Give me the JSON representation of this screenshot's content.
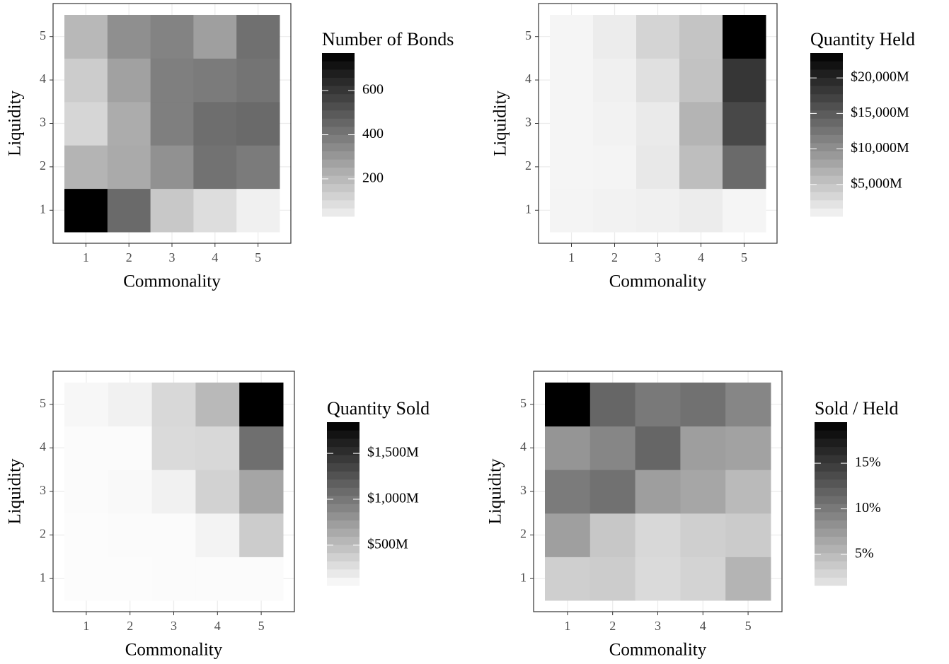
{
  "chart_data": [
    {
      "type": "heatmap",
      "xlabel": "Commonality",
      "ylabel": "Liquidity",
      "legend_title": "Number of Bonds",
      "x": [
        1,
        2,
        3,
        4,
        5
      ],
      "y": [
        1,
        2,
        3,
        4,
        5
      ],
      "values": [
        [
          770,
          442,
          153,
          90,
          30
        ],
        [
          216,
          247,
          323,
          417,
          392
        ],
        [
          109,
          241,
          379,
          430,
          442
        ],
        [
          140,
          273,
          379,
          392,
          411
        ],
        [
          203,
          329,
          367,
          279,
          424
        ]
      ],
      "zlim": [
        30,
        770
      ],
      "zticks": [
        200,
        400,
        600
      ],
      "low_color": "#f0f0f0",
      "high_color": "#000000",
      "grid": true
    },
    {
      "type": "heatmap",
      "xlabel": "Commonality",
      "ylabel": "Liquidity",
      "legend_title": "Quantity Held",
      "x": [
        1,
        2,
        3,
        4,
        5
      ],
      "y": [
        1,
        2,
        3,
        4,
        5
      ],
      "values": [
        [
          590,
          780,
          960,
          1350,
          500
        ],
        [
          500,
          590,
          1720,
          5660,
          13550
        ],
        [
          500,
          780,
          1530,
          6600,
          16740
        ],
        [
          500,
          960,
          2470,
          5290,
          18430
        ],
        [
          500,
          1350,
          3600,
          5100,
          23500
        ]
      ],
      "zlim": [
        500,
        23500
      ],
      "zticks": [
        {
          "value": 5000,
          "label": "$5,000M"
        },
        {
          "value": 10000,
          "label": "$10,000M"
        },
        {
          "value": 15000,
          "label": "$15,000M"
        },
        {
          "value": 20000,
          "label": "$20,000M"
        }
      ],
      "low_color": "#f5f5f5",
      "high_color": "#000000",
      "grid": true
    },
    {
      "type": "heatmap",
      "xlabel": "Commonality",
      "ylabel": "Liquidity",
      "legend_title": "Quantity Sold",
      "x": [
        1,
        2,
        3,
        4,
        5
      ],
      "y": [
        1,
        2,
        3,
        4,
        5
      ],
      "values": [
        [
          62,
          62,
          64,
          70,
          70
        ],
        [
          62,
          64,
          68,
          125,
          401
        ],
        [
          64,
          82,
          140,
          358,
          677
        ],
        [
          64,
          67,
          300,
          314,
          1055
        ],
        [
          96,
          140,
          314,
          532,
          1840
        ]
      ],
      "zlim": [
        60,
        1840
      ],
      "zticks": [
        {
          "value": 500,
          "label": "$500M"
        },
        {
          "value": 1000,
          "label": "$1,000M"
        },
        {
          "value": 1500,
          "label": "$1,500M"
        }
      ],
      "low_color": "#fcfcfc",
      "high_color": "#000000",
      "grid": true
    },
    {
      "type": "heatmap",
      "xlabel": "Commonality",
      "ylabel": "Liquidity",
      "legend_title": "Sold / Held",
      "x": [
        1,
        2,
        3,
        4,
        5
      ],
      "y": [
        1,
        2,
        3,
        4,
        5
      ],
      "values": [
        [
          3.4,
          3.6,
          2.5,
          3.1,
          5.5
        ],
        [
          7.1,
          4.0,
          2.7,
          3.4,
          3.7
        ],
        [
          9.9,
          10.7,
          7.2,
          6.6,
          5.0
        ],
        [
          7.9,
          9.1,
          11.6,
          7.2,
          6.9
        ],
        [
          19.5,
          11.6,
          10.1,
          10.7,
          9.1
        ]
      ],
      "zlim": [
        1.6,
        19.5
      ],
      "zticks": [
        {
          "value": 5,
          "label": "5%"
        },
        {
          "value": 10,
          "label": "10%"
        },
        {
          "value": 15,
          "label": "15%"
        }
      ],
      "low_color": "#e6e6e6",
      "high_color": "#000000",
      "grid": true
    }
  ]
}
